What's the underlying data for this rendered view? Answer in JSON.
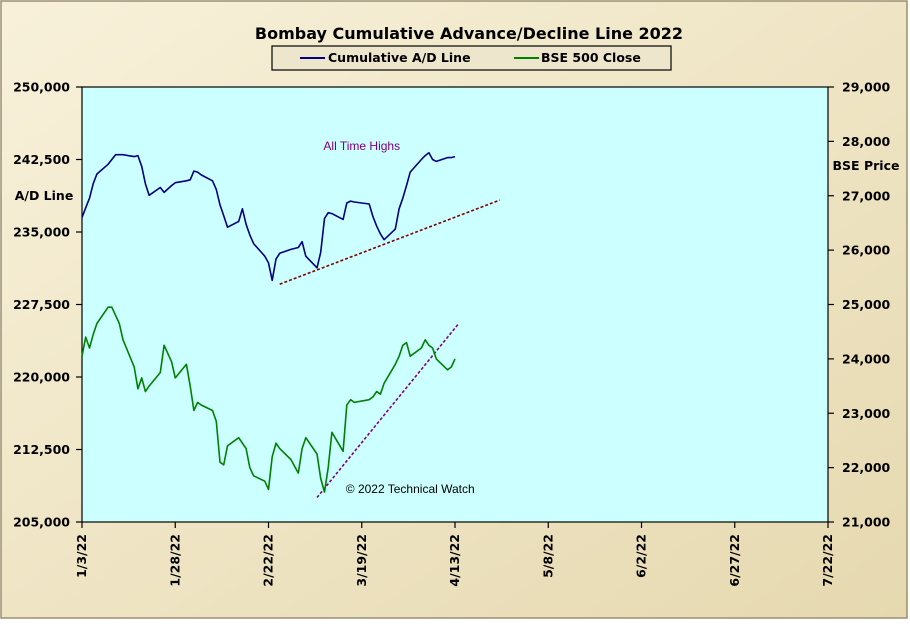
{
  "chart_data": {
    "type": "line",
    "title": "Bombay Cumulative Advance/Decline Line 2022",
    "left_axis": {
      "label": "A/D Line",
      "min": 205000,
      "max": 250000,
      "ticks": [
        205000,
        212500,
        220000,
        227500,
        235000,
        242500,
        250000
      ],
      "tick_labels": [
        "205,000",
        "212,500",
        "220,000",
        "227,500",
        "235,000",
        "242,500",
        "250,000"
      ]
    },
    "right_axis": {
      "label": "BSE Price",
      "min": 21000,
      "max": 29000,
      "ticks": [
        21000,
        22000,
        23000,
        24000,
        25000,
        26000,
        27000,
        28000,
        29000
      ],
      "tick_labels": [
        "21,000",
        "22,000",
        "23,000",
        "24,000",
        "25,000",
        "26,000",
        "27,000",
        "28,000",
        "29,000"
      ]
    },
    "x_axis": {
      "min": "2022-01-03",
      "max": "2022-07-22",
      "ticks": [
        "2022-01-03",
        "2022-01-28",
        "2022-02-22",
        "2022-03-19",
        "2022-04-13",
        "2022-05-08",
        "2022-06-02",
        "2022-06-27",
        "2022-07-22"
      ],
      "tick_labels": [
        "1/3/22",
        "1/28/22",
        "2/22/22",
        "3/19/22",
        "4/13/22",
        "5/8/22",
        "6/2/22",
        "6/27/22",
        "7/22/22"
      ]
    },
    "grid": false,
    "legend_position": "top-center",
    "series": [
      {
        "name": "Cumulative A/D Line",
        "axis": "left",
        "color": "#000080",
        "x": [
          "2022-01-03",
          "2022-01-04",
          "2022-01-05",
          "2022-01-06",
          "2022-01-07",
          "2022-01-10",
          "2022-01-11",
          "2022-01-12",
          "2022-01-13",
          "2022-01-14",
          "2022-01-17",
          "2022-01-18",
          "2022-01-19",
          "2022-01-20",
          "2022-01-21",
          "2022-01-24",
          "2022-01-25",
          "2022-01-27",
          "2022-01-28",
          "2022-01-31",
          "2022-02-01",
          "2022-02-02",
          "2022-02-03",
          "2022-02-04",
          "2022-02-07",
          "2022-02-08",
          "2022-02-09",
          "2022-02-10",
          "2022-02-11",
          "2022-02-14",
          "2022-02-15",
          "2022-02-16",
          "2022-02-17",
          "2022-02-18",
          "2022-02-21",
          "2022-02-22",
          "2022-02-23",
          "2022-02-24",
          "2022-02-25",
          "2022-02-28",
          "2022-03-02",
          "2022-03-03",
          "2022-03-04",
          "2022-03-07",
          "2022-03-08",
          "2022-03-09",
          "2022-03-10",
          "2022-03-11",
          "2022-03-14",
          "2022-03-15",
          "2022-03-16",
          "2022-03-17",
          "2022-03-21",
          "2022-03-22",
          "2022-03-23",
          "2022-03-24",
          "2022-03-25",
          "2022-03-28",
          "2022-03-29",
          "2022-03-30",
          "2022-03-31",
          "2022-04-01",
          "2022-04-04",
          "2022-04-05",
          "2022-04-06",
          "2022-04-07",
          "2022-04-08",
          "2022-04-11",
          "2022-04-12",
          "2022-04-13"
        ],
        "values": [
          236500,
          237500,
          238500,
          240000,
          241000,
          242000,
          242500,
          243000,
          243000,
          243000,
          242800,
          242900,
          241800,
          240000,
          238800,
          239600,
          239100,
          239800,
          240100,
          240300,
          240400,
          241300,
          241200,
          240900,
          240300,
          239400,
          237800,
          236700,
          235500,
          236100,
          237400,
          235800,
          234700,
          233800,
          232500,
          231800,
          230000,
          232200,
          232800,
          233200,
          233400,
          234000,
          232500,
          231300,
          232900,
          236400,
          237000,
          236900,
          236300,
          238000,
          238200,
          238100,
          237900,
          236600,
          235600,
          234800,
          234200,
          235300,
          237400,
          238500,
          239800,
          241200,
          242500,
          242900,
          243200,
          242500,
          242300,
          242700,
          242700,
          242800
        ]
      },
      {
        "name": "BSE 500 Close",
        "axis": "right",
        "color": "#008000",
        "x": [
          "2022-01-03",
          "2022-01-04",
          "2022-01-05",
          "2022-01-06",
          "2022-01-07",
          "2022-01-10",
          "2022-01-11",
          "2022-01-12",
          "2022-01-13",
          "2022-01-14",
          "2022-01-17",
          "2022-01-18",
          "2022-01-19",
          "2022-01-20",
          "2022-01-21",
          "2022-01-24",
          "2022-01-25",
          "2022-01-27",
          "2022-01-28",
          "2022-01-31",
          "2022-02-01",
          "2022-02-02",
          "2022-02-03",
          "2022-02-04",
          "2022-02-07",
          "2022-02-08",
          "2022-02-09",
          "2022-02-10",
          "2022-02-11",
          "2022-02-14",
          "2022-02-15",
          "2022-02-16",
          "2022-02-17",
          "2022-02-18",
          "2022-02-21",
          "2022-02-22",
          "2022-02-23",
          "2022-02-24",
          "2022-02-25",
          "2022-02-28",
          "2022-03-02",
          "2022-03-03",
          "2022-03-04",
          "2022-03-07",
          "2022-03-08",
          "2022-03-09",
          "2022-03-10",
          "2022-03-11",
          "2022-03-14",
          "2022-03-15",
          "2022-03-16",
          "2022-03-17",
          "2022-03-21",
          "2022-03-22",
          "2022-03-23",
          "2022-03-24",
          "2022-03-25",
          "2022-03-28",
          "2022-03-29",
          "2022-03-30",
          "2022-03-31",
          "2022-04-01",
          "2022-04-04",
          "2022-04-05",
          "2022-04-06",
          "2022-04-07",
          "2022-04-08",
          "2022-04-11",
          "2022-04-12",
          "2022-04-13"
        ],
        "values": [
          24050,
          24400,
          24200,
          24450,
          24650,
          24950,
          24950,
          24800,
          24650,
          24350,
          23850,
          23450,
          23650,
          23400,
          23500,
          23750,
          24250,
          23950,
          23650,
          23900,
          23500,
          23050,
          23200,
          23150,
          23050,
          22850,
          22100,
          22050,
          22400,
          22550,
          22450,
          22350,
          22000,
          21850,
          21750,
          21600,
          22200,
          22450,
          22350,
          22150,
          21900,
          22350,
          22550,
          22250,
          21800,
          21550,
          22000,
          22650,
          22300,
          23150,
          23250,
          23200,
          23250,
          23300,
          23400,
          23350,
          23550,
          23900,
          24050,
          24250,
          24300,
          24050,
          24200,
          24350,
          24250,
          24200,
          24000,
          23800,
          23850,
          24000
        ]
      }
    ],
    "annotations": [
      {
        "text": "All Time Highs",
        "x": "2022-03-19",
        "y": 243500,
        "axis": "left",
        "color": "#800080"
      },
      {
        "text": "© 2022 Technical Watch",
        "x": "2022-04-01",
        "y": 208000,
        "axis": "left",
        "color": "#000000"
      }
    ],
    "trendlines": [
      {
        "axis": "left",
        "color": "#800000",
        "style": "dashed",
        "from": {
          "x": "2022-02-25",
          "y": 229600
        },
        "to": {
          "x": "2022-04-25",
          "y": 238300
        }
      },
      {
        "axis": "right",
        "color": "#800080",
        "style": "dashed",
        "from": {
          "x": "2022-03-07",
          "y": 21450
        },
        "to": {
          "x": "2022-04-14",
          "y": 24650
        }
      }
    ]
  }
}
